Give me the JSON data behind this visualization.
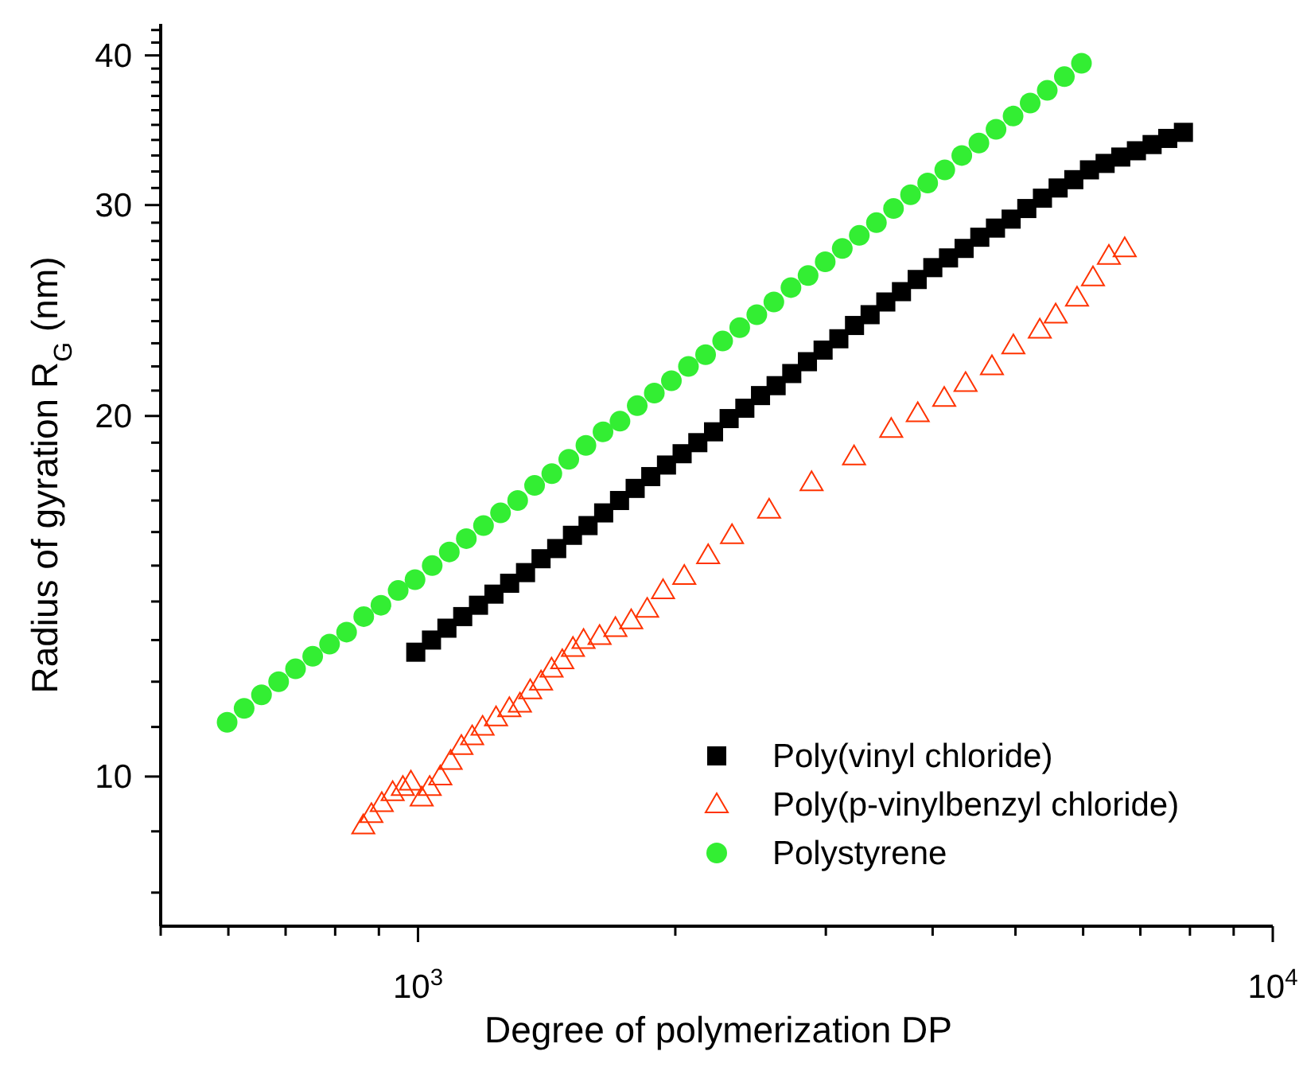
{
  "chart_data": {
    "type": "scatter",
    "xlabel": "Degree of polymerization DP",
    "ylabel": "Radius of gyration R$_{G}$ (nm)",
    "log": "xy",
    "xlim": [
      500,
      10000
    ],
    "ylim": [
      7.5,
      42.5
    ],
    "xticks": [
      {
        "value": 500,
        "label": null
      },
      {
        "value": 600,
        "label": null
      },
      {
        "value": 700,
        "label": null
      },
      {
        "value": 800,
        "label": null
      },
      {
        "value": 900,
        "label": null
      },
      {
        "value": 1000,
        "label": "10$^{3}$"
      },
      {
        "value": 2000,
        "label": null
      },
      {
        "value": 3000,
        "label": null
      },
      {
        "value": 4000,
        "label": null
      },
      {
        "value": 5000,
        "label": null
      },
      {
        "value": 6000,
        "label": null
      },
      {
        "value": 7000,
        "label": null
      },
      {
        "value": 8000,
        "label": null
      },
      {
        "value": 9000,
        "label": null
      },
      {
        "value": 10000,
        "label": "10$^{4}$"
      }
    ],
    "yticks": [
      {
        "value": 8,
        "label": null
      },
      {
        "value": 9,
        "label": null
      },
      10,
      {
        "value": 11,
        "label": null
      },
      {
        "value": 12,
        "label": null
      },
      {
        "value": 13,
        "label": null
      },
      {
        "value": 14,
        "label": null
      },
      {
        "value": 15,
        "label": null
      },
      {
        "value": 16,
        "label": null
      },
      {
        "value": 17,
        "label": null
      },
      {
        "value": 18,
        "label": null
      },
      {
        "value": 19,
        "label": null
      },
      20,
      {
        "value": 21,
        "label": null
      },
      {
        "value": 22,
        "label": null
      },
      {
        "value": 23,
        "label": null
      },
      {
        "value": 24,
        "label": null
      },
      {
        "value": 25,
        "label": null
      },
      {
        "value": 26,
        "label": null
      },
      {
        "value": 27,
        "label": null
      },
      {
        "value": 28,
        "label": null
      },
      {
        "value": 29,
        "label": null
      },
      30,
      {
        "value": 31,
        "label": null
      },
      {
        "value": 32,
        "label": null
      },
      {
        "value": 33,
        "label": null
      },
      {
        "value": 34,
        "label": null
      },
      {
        "value": 35,
        "label": null
      },
      {
        "value": 36,
        "label": null
      },
      {
        "value": 37,
        "label": null
      },
      {
        "value": 38,
        "label": null
      },
      {
        "value": 39,
        "label": null
      },
      40,
      {
        "value": 41,
        "label": null
      },
      {
        "value": 42,
        "label": null
      }
    ],
    "legend": "bottom right",
    "series": [
      {
        "name": "Poly(vinyl chloride)",
        "color": "#000000",
        "marker": "square",
        "x": [
          994,
          1037,
          1081,
          1128,
          1177,
          1227,
          1280,
          1336,
          1393,
          1453,
          1516,
          1581,
          1649,
          1721,
          1795,
          1872,
          1953,
          2037,
          2125,
          2217,
          2312,
          2412,
          2516,
          2624,
          2737,
          2855,
          2978,
          3107,
          3241,
          3380,
          3526,
          3678,
          3837,
          4002,
          4175,
          4354,
          4542,
          4738,
          4942,
          5155,
          5377,
          5609,
          5851,
          6103,
          6366,
          6640,
          6926,
          7225,
          7536,
          7861
        ],
        "values": [
          12.7,
          13.0,
          13.3,
          13.6,
          13.9,
          14.2,
          14.5,
          14.8,
          15.2,
          15.5,
          15.9,
          16.2,
          16.6,
          17.0,
          17.4,
          17.8,
          18.2,
          18.6,
          19.0,
          19.4,
          19.9,
          20.3,
          20.8,
          21.2,
          21.7,
          22.2,
          22.7,
          23.2,
          23.8,
          24.3,
          24.9,
          25.4,
          26.0,
          26.6,
          27.1,
          27.6,
          28.2,
          28.7,
          29.2,
          29.8,
          30.4,
          31.0,
          31.5,
          32.1,
          32.5,
          32.9,
          33.3,
          33.7,
          34.1,
          34.5
        ]
      },
      {
        "name": "Poly(p-vinylbenzyl chloride)",
        "color": "#ff3300",
        "marker": "triangle",
        "x": [
          863,
          882,
          907,
          934,
          960,
          981,
          1010,
          1032,
          1062,
          1092,
          1124,
          1157,
          1190,
          1234,
          1279,
          1316,
          1353,
          1393,
          1433,
          1475,
          1518,
          1562,
          1631,
          1702,
          1776,
          1854,
          1935,
          2049,
          2185,
          2330,
          2575,
          2887,
          3237,
          3578,
          3843,
          4127,
          4371,
          4693,
          4972,
          5339,
          5572,
          5902,
          6161,
          6431,
          6711
        ],
        "values": [
          9.1,
          9.3,
          9.5,
          9.7,
          9.8,
          9.9,
          9.6,
          9.8,
          10.0,
          10.3,
          10.6,
          10.8,
          11.0,
          11.2,
          11.4,
          11.5,
          11.8,
          12.0,
          12.3,
          12.5,
          12.8,
          13.0,
          13.1,
          13.3,
          13.5,
          13.8,
          14.3,
          14.7,
          15.3,
          15.9,
          16.7,
          17.6,
          18.5,
          19.5,
          20.1,
          20.7,
          21.3,
          22.0,
          22.9,
          23.6,
          24.3,
          25.1,
          26.1,
          27.2,
          27.6
        ]
      },
      {
        "name": "Polystyrene",
        "color": "#33ee33",
        "marker": "circle",
        "x": [
          598,
          626,
          656,
          687,
          719,
          753,
          788,
          825,
          864,
          905,
          948,
          992,
          1039,
          1088,
          1139,
          1193,
          1249,
          1308,
          1369,
          1434,
          1501,
          1572,
          1646,
          1723,
          1805,
          1890,
          1979,
          2072,
          2170,
          2272,
          2379,
          2491,
          2608,
          2731,
          2860,
          2995,
          3136,
          3283,
          3438,
          3600,
          3769,
          3947,
          4133,
          4327,
          4531,
          4745,
          4968,
          5202,
          5447,
          5704,
          5973
        ],
        "values": [
          11.1,
          11.4,
          11.7,
          12.0,
          12.3,
          12.6,
          12.9,
          13.2,
          13.6,
          13.9,
          14.3,
          14.6,
          15.0,
          15.4,
          15.8,
          16.2,
          16.6,
          17.0,
          17.5,
          17.9,
          18.4,
          18.9,
          19.4,
          19.8,
          20.4,
          20.9,
          21.4,
          22.0,
          22.5,
          23.1,
          23.7,
          24.3,
          24.9,
          25.6,
          26.2,
          26.9,
          27.6,
          28.3,
          29.0,
          29.8,
          30.6,
          31.3,
          32.1,
          33.0,
          33.8,
          34.7,
          35.6,
          36.5,
          37.4,
          38.4,
          39.4
        ]
      }
    ]
  }
}
